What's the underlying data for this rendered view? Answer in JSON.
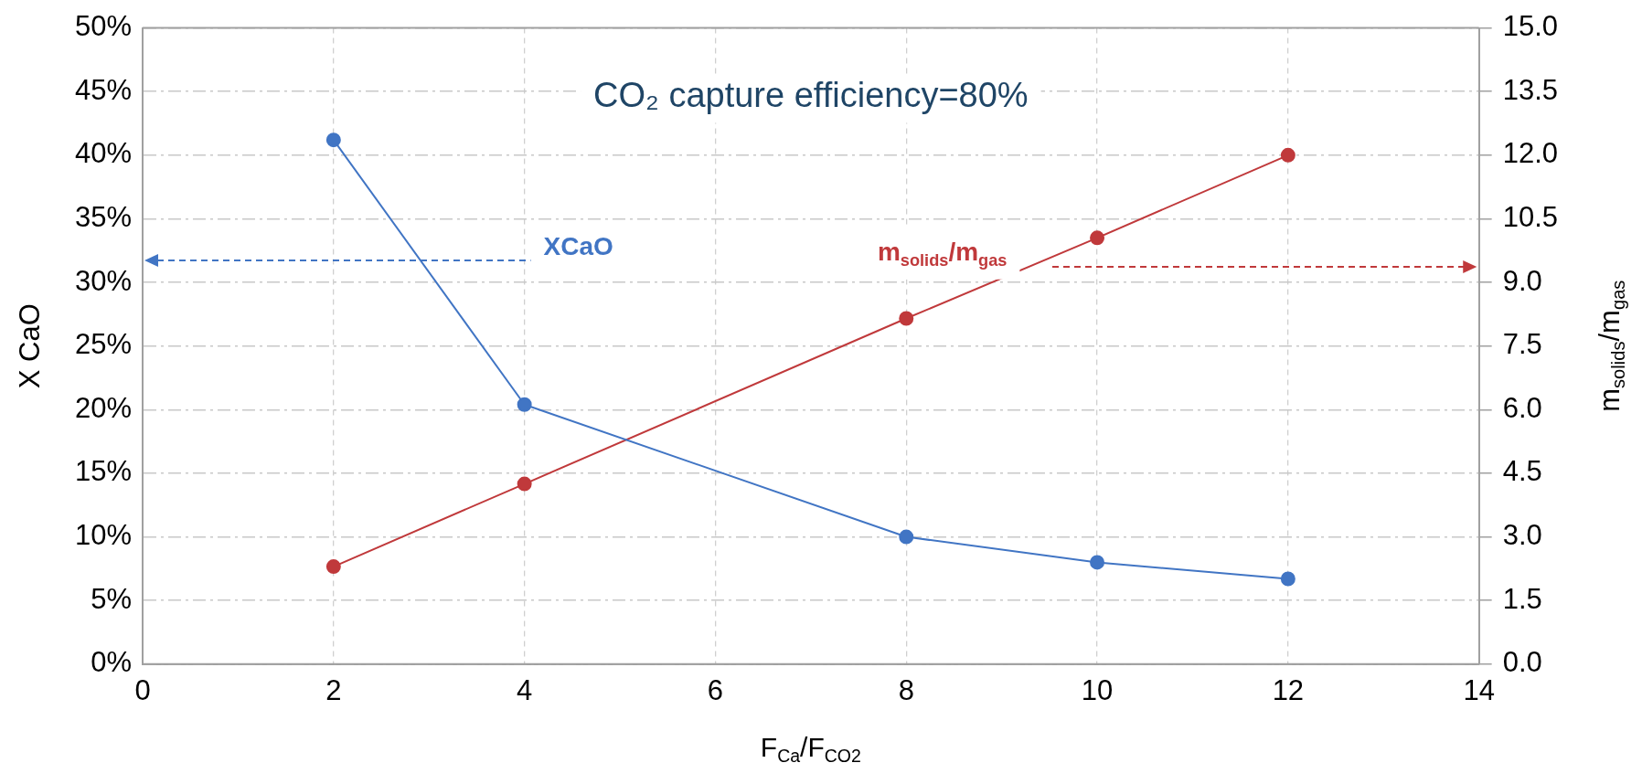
{
  "chart_data": {
    "type": "line",
    "title": "CO₂ capture efficiency=80%",
    "xlabel": "F$_{Ca}$/F$_{CO2}$",
    "ylabel": "X CaO",
    "y2label": "m$_{solids}$/m$_{gas}$",
    "series": [
      {
        "name": "XCaO",
        "color": "#4175c4",
        "x": [
          2,
          4,
          8,
          10,
          12
        ],
        "values": [
          41.2,
          20.4,
          10.0,
          8.0,
          6.7
        ]
      },
      {
        "name": "m$_{solids}$/m$_{gas}$",
        "color": "#c0393b",
        "axis": "y2",
        "x": [
          2,
          4,
          8,
          10,
          12
        ],
        "values": [
          2.3,
          4.25,
          8.15,
          10.05,
          12.0
        ]
      }
    ],
    "xlim": [
      0,
      14
    ],
    "xticks": [
      0,
      2,
      4,
      6,
      8,
      10,
      12,
      14
    ],
    "ylim": [
      0,
      50
    ],
    "yticks": [
      {
        "value": 0,
        "label": "0%"
      },
      {
        "value": 5,
        "label": "5%"
      },
      {
        "value": 10,
        "label": "10%"
      },
      {
        "value": 15,
        "label": "15%"
      },
      {
        "value": 20,
        "label": "20%"
      },
      {
        "value": 25,
        "label": "25%"
      },
      {
        "value": 30,
        "label": "30%"
      },
      {
        "value": 35,
        "label": "35%"
      },
      {
        "value": 40,
        "label": "40%"
      },
      {
        "value": 45,
        "label": "45%"
      },
      {
        "value": 50,
        "label": "50%"
      }
    ],
    "y2lim": [
      0,
      15
    ],
    "y2ticks": [
      {
        "value": 0,
        "label": "0.0"
      },
      {
        "value": 1.5,
        "label": "1.5"
      },
      {
        "value": 3,
        "label": "3.0"
      },
      {
        "value": 4.5,
        "label": "4.5"
      },
      {
        "value": 6,
        "label": "6.0"
      },
      {
        "value": 7.5,
        "label": "7.5"
      },
      {
        "value": 9,
        "label": "9.0"
      },
      {
        "value": 10.5,
        "label": "10.5"
      },
      {
        "value": 12,
        "label": "12.0"
      },
      {
        "value": 13.5,
        "label": "13.5"
      },
      {
        "value": 15,
        "label": "15.0"
      }
    ],
    "grid": true,
    "legend": false,
    "marker": "circle",
    "line_style": "solid"
  }
}
